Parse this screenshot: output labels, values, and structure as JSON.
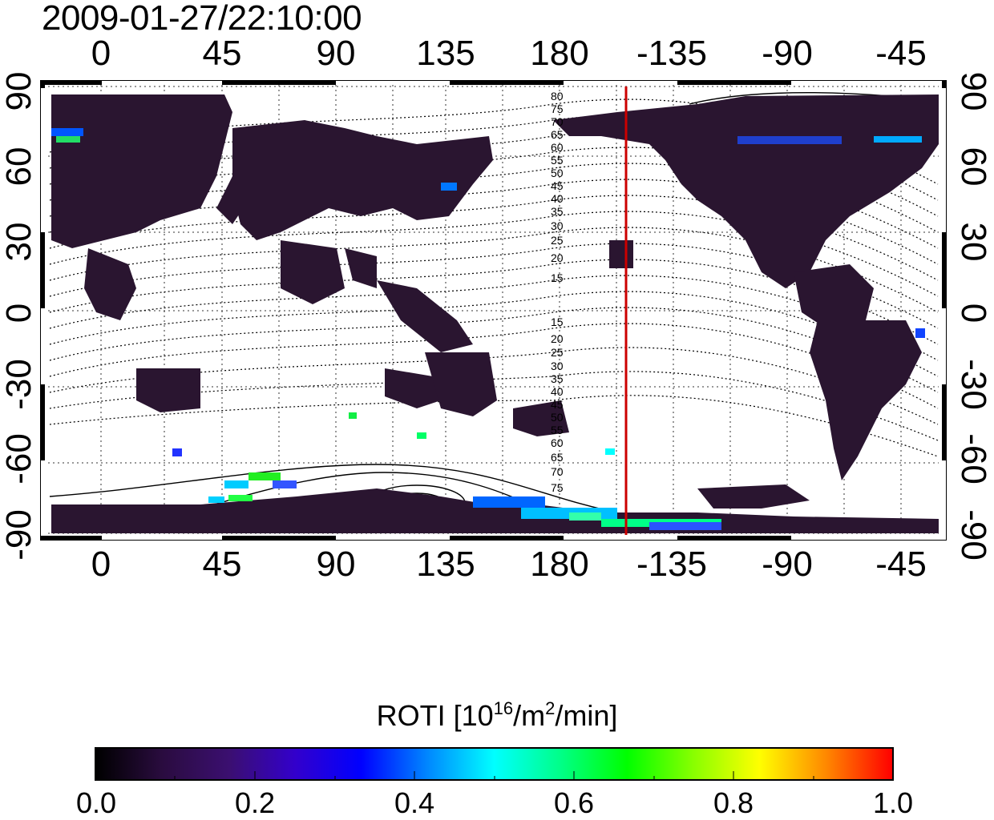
{
  "timestamp": "2009-01-27/22:10:00",
  "map": {
    "projection": "equirectangular",
    "center_meridian": 165,
    "lon_tick_labels": [
      "0",
      "45",
      "90",
      "135",
      "180",
      "-135",
      "-90",
      "-45"
    ],
    "lat_tick_labels_left": [
      "90",
      "60",
      "30",
      "0",
      "-30",
      "-60",
      "-90"
    ],
    "lat_tick_labels_right": [
      "90",
      "60",
      "30",
      "0",
      "-30",
      "-60",
      "-90"
    ],
    "magnetic_latitude_labels_north": [
      "80",
      "75",
      "70",
      "65",
      "60",
      "55",
      "50",
      "45",
      "40",
      "35",
      "30",
      "25",
      "20",
      "15"
    ],
    "magnetic_latitude_labels_south": [
      "15",
      "20",
      "25",
      "30",
      "35",
      "40",
      "45",
      "50",
      "55",
      "60",
      "65",
      "70",
      "75"
    ],
    "terminator_line_color": "#cc0000",
    "grid": true,
    "grid_style": "dotted"
  },
  "colorbar": {
    "title_prefix": "ROTI  [10",
    "title_exp1": "16",
    "title_mid": "/m",
    "title_exp2": "2",
    "title_suffix": "/min]",
    "tick_labels": [
      "0.0",
      "0.2",
      "0.4",
      "0.6",
      "0.8",
      "1.0"
    ],
    "min": 0.0,
    "max": 1.0,
    "colors": [
      "#000000",
      "#2a0c3f",
      "#3b0f70",
      "#3300cc",
      "#0000ff",
      "#0088ff",
      "#00ffff",
      "#00ff88",
      "#00ff00",
      "#88ff00",
      "#ffff00",
      "#ff8800",
      "#ff0000"
    ]
  }
}
